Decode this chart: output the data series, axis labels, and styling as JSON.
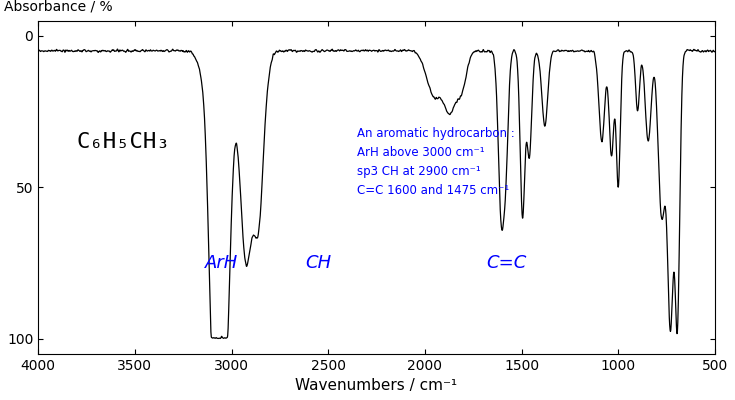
{
  "title": "",
  "xlabel": "Wavenumbers / cm⁻¹",
  "ylabel": "Absorbance / %",
  "xlim": [
    4000,
    500
  ],
  "ylim": [
    105,
    -5
  ],
  "yticks": [
    0,
    50,
    100
  ],
  "xticks": [
    4000,
    3500,
    3000,
    2500,
    2000,
    1500,
    1000,
    500
  ],
  "formula": "C₆H₅CH₃",
  "annotation_blue": "An aromatic hydrocarbon :\nArH above 3000 cm⁻¹\nsp3 CH at 2900 cm⁻¹\nC=C 1600 and 1475 cm⁻¹",
  "label_ArH": "ArH",
  "label_CH": "CH",
  "label_CC": "C=C",
  "label_color": "#0000ff",
  "line_color": "#000000",
  "bg_color": "#ffffff"
}
